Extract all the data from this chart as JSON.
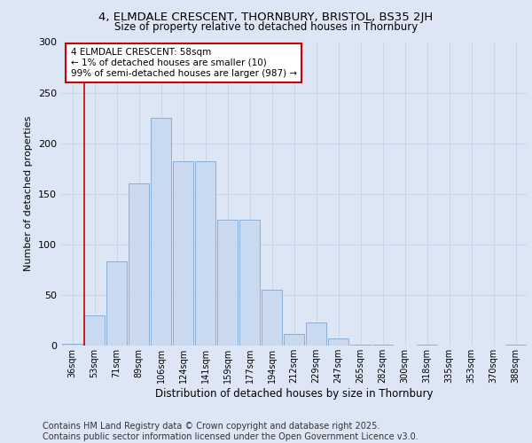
{
  "title_line1": "4, ELMDALE CRESCENT, THORNBURY, BRISTOL, BS35 2JH",
  "title_line2": "Size of property relative to detached houses in Thornbury",
  "xlabel": "Distribution of detached houses by size in Thornbury",
  "ylabel": "Number of detached properties",
  "categories": [
    "36sqm",
    "53sqm",
    "71sqm",
    "89sqm",
    "106sqm",
    "124sqm",
    "141sqm",
    "159sqm",
    "177sqm",
    "194sqm",
    "212sqm",
    "229sqm",
    "247sqm",
    "265sqm",
    "282sqm",
    "300sqm",
    "318sqm",
    "335sqm",
    "353sqm",
    "370sqm",
    "388sqm"
  ],
  "values": [
    2,
    30,
    83,
    160,
    225,
    182,
    182,
    124,
    124,
    55,
    11,
    23,
    7,
    1,
    1,
    0,
    1,
    0,
    0,
    0,
    1
  ],
  "bar_color": "#c9d9f0",
  "bar_edge_color": "#7fa8d0",
  "highlight_bar_index": 1,
  "annotation_text": "4 ELMDALE CRESCENT: 58sqm\n← 1% of detached houses are smaller (10)\n99% of semi-detached houses are larger (987) →",
  "annotation_box_color": "#ffffff",
  "annotation_box_edge_color": "#cc0000",
  "annotation_text_fontsize": 7.5,
  "highlight_line_color": "#cc0000",
  "ylim": [
    0,
    300
  ],
  "yticks": [
    0,
    50,
    100,
    150,
    200,
    250,
    300
  ],
  "grid_color": "#c8d4e8",
  "background_color": "#dce6f5",
  "footer_line1": "Contains HM Land Registry data © Crown copyright and database right 2025.",
  "footer_line2": "Contains public sector information licensed under the Open Government Licence v3.0.",
  "footer_fontsize": 7
}
